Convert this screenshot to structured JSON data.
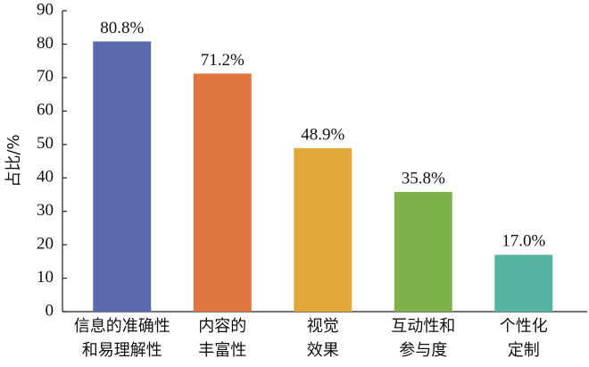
{
  "chart_data": {
    "type": "bar",
    "y_label": "占比/%",
    "categories": [
      [
        "信息的准确性",
        "和易理解性"
      ],
      [
        "内容的",
        "丰富性"
      ],
      [
        "视觉",
        "效果"
      ],
      [
        "互动性和",
        "参与度"
      ],
      [
        "个性化",
        "定制"
      ]
    ],
    "values": [
      80.8,
      71.2,
      48.9,
      35.8,
      17.0
    ],
    "value_labels": [
      "80.8%",
      "71.2%",
      "48.9%",
      "35.8%",
      "17.0%"
    ],
    "colors": [
      "#5b69ad",
      "#e0763f",
      "#e2a83a",
      "#7eb14b",
      "#55b5a0"
    ],
    "ylim": [
      0,
      90
    ],
    "yticks": [
      0,
      10,
      20,
      30,
      40,
      50,
      60,
      70,
      80,
      90
    ],
    "grid": false
  }
}
